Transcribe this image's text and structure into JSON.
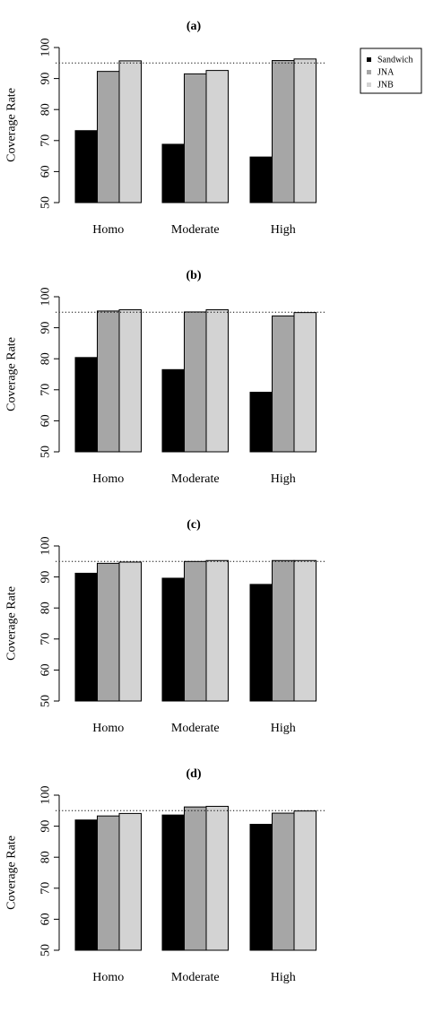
{
  "legend": {
    "position": "top-right",
    "entries": [
      {
        "label": "Sandwich",
        "color": "#000000"
      },
      {
        "label": "JNA",
        "color": "#a6a6a6"
      },
      {
        "label": "JNB",
        "color": "#d3d3d3"
      }
    ]
  },
  "chart_data": [
    {
      "type": "bar",
      "title": "(a)",
      "ylabel": "Coverage Rate",
      "xlabel": "",
      "ylim": [
        50,
        100
      ],
      "yticks": [
        50,
        60,
        70,
        80,
        90,
        100
      ],
      "reference_line": 95,
      "categories": [
        "Homo",
        "Moderate",
        "High"
      ],
      "series": [
        {
          "name": "Sandwich",
          "color": "#000000",
          "values": [
            73.2,
            68.8,
            64.7
          ]
        },
        {
          "name": "JNA",
          "color": "#a6a6a6",
          "values": [
            92.3,
            91.5,
            95.8
          ]
        },
        {
          "name": "JNB",
          "color": "#d3d3d3",
          "values": [
            95.7,
            92.6,
            96.3
          ]
        }
      ]
    },
    {
      "type": "bar",
      "title": "(b)",
      "ylabel": "Coverage Rate",
      "xlabel": "",
      "ylim": [
        50,
        100
      ],
      "yticks": [
        50,
        60,
        70,
        80,
        90,
        100
      ],
      "reference_line": 95,
      "categories": [
        "Homo",
        "Moderate",
        "High"
      ],
      "series": [
        {
          "name": "Sandwich",
          "color": "#000000",
          "values": [
            80.4,
            76.5,
            69.2
          ]
        },
        {
          "name": "JNA",
          "color": "#a6a6a6",
          "values": [
            95.4,
            95.1,
            93.8
          ]
        },
        {
          "name": "JNB",
          "color": "#d3d3d3",
          "values": [
            95.8,
            95.8,
            94.9
          ]
        }
      ]
    },
    {
      "type": "bar",
      "title": "(c)",
      "ylabel": "Coverage Rate",
      "xlabel": "",
      "ylim": [
        50,
        100
      ],
      "yticks": [
        50,
        60,
        70,
        80,
        90,
        100
      ],
      "reference_line": 95,
      "categories": [
        "Homo",
        "Moderate",
        "High"
      ],
      "series": [
        {
          "name": "Sandwich",
          "color": "#000000",
          "values": [
            91.2,
            89.6,
            87.6
          ]
        },
        {
          "name": "JNA",
          "color": "#a6a6a6",
          "values": [
            94.4,
            95.0,
            95.3
          ]
        },
        {
          "name": "JNB",
          "color": "#d3d3d3",
          "values": [
            94.8,
            95.3,
            95.3
          ]
        }
      ]
    },
    {
      "type": "bar",
      "title": "(d)",
      "ylabel": "Coverage Rate",
      "xlabel": "",
      "ylim": [
        50,
        100
      ],
      "yticks": [
        50,
        60,
        70,
        80,
        90,
        100
      ],
      "reference_line": 95,
      "categories": [
        "Homo",
        "Moderate",
        "High"
      ],
      "series": [
        {
          "name": "Sandwich",
          "color": "#000000",
          "values": [
            92.0,
            93.6,
            90.6
          ]
        },
        {
          "name": "JNA",
          "color": "#a6a6a6",
          "values": [
            93.3,
            96.2,
            94.2
          ]
        },
        {
          "name": "JNB",
          "color": "#d3d3d3",
          "values": [
            94.1,
            96.4,
            94.9
          ]
        }
      ]
    }
  ]
}
